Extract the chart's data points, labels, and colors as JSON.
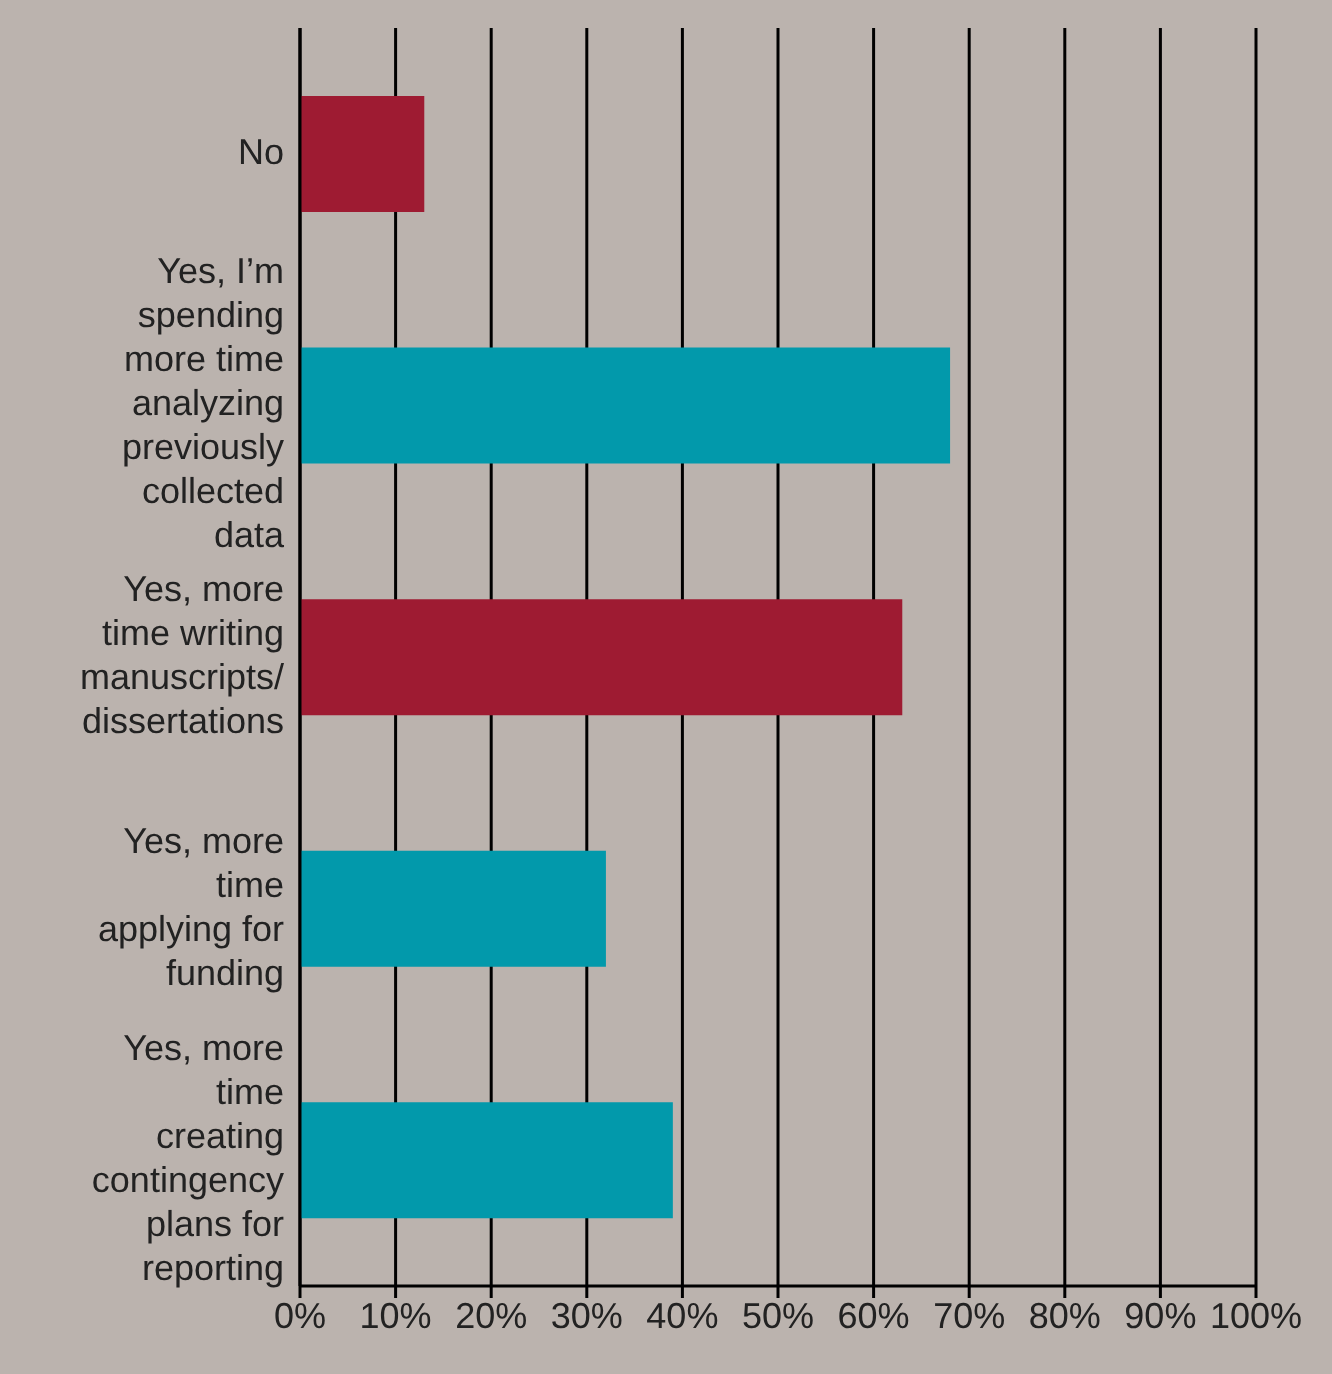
{
  "chart_data": {
    "type": "bar",
    "orientation": "horizontal",
    "categories": [
      "No",
      "Yes, I’m spending more time analyzing previously collected data",
      "Yes, more time writing manuscripts/ dissertations",
      "Yes, more time applying for funding",
      "Yes, more time creating contingency plans for reporting"
    ],
    "values": [
      13,
      68,
      63,
      32,
      39
    ],
    "colors": [
      "#9e1b32",
      "#0299ab",
      "#9e1b32",
      "#0299ab",
      "#0299ab"
    ],
    "xlim": [
      0,
      100
    ],
    "xticks": [
      {
        "value": 0,
        "label": "0%"
      },
      {
        "value": 10,
        "label": "10%"
      },
      {
        "value": 20,
        "label": "20%"
      },
      {
        "value": 30,
        "label": "30%"
      },
      {
        "value": 40,
        "label": "40%"
      },
      {
        "value": 50,
        "label": "50%"
      },
      {
        "value": 60,
        "label": "60%"
      },
      {
        "value": 70,
        "label": "70%"
      },
      {
        "value": 80,
        "label": "80%"
      },
      {
        "value": 90,
        "label": "90%"
      },
      {
        "value": 100,
        "label": "100%"
      }
    ],
    "grid": "x"
  }
}
